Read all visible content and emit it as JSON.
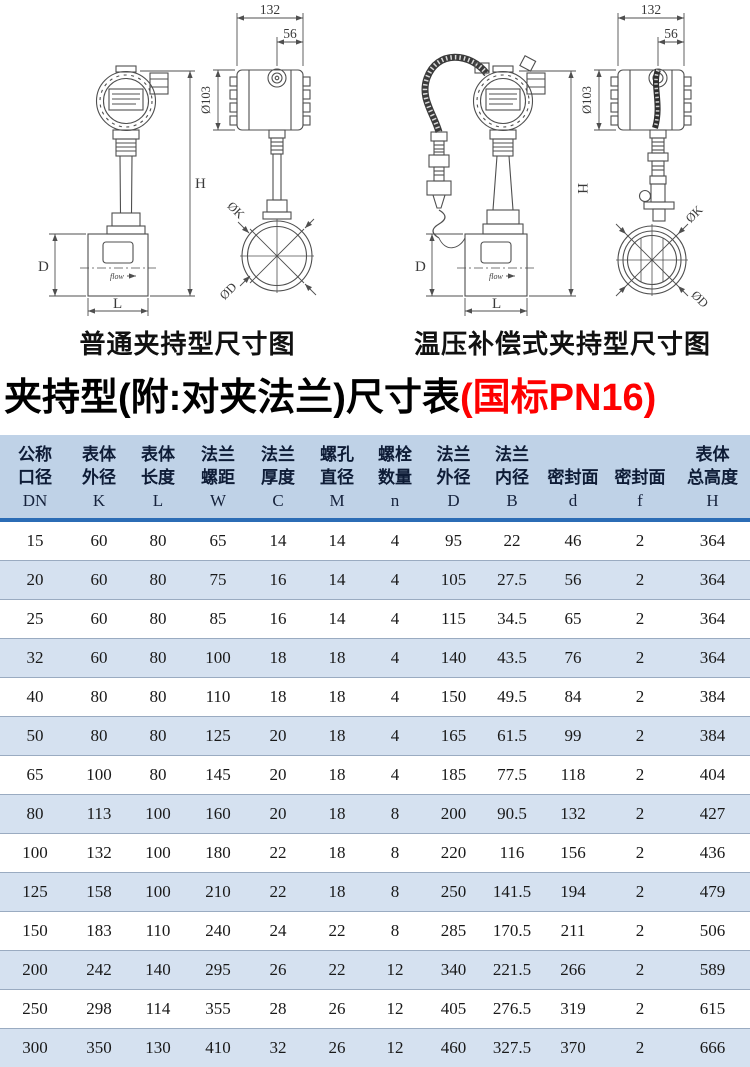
{
  "figures": {
    "left": {
      "caption": "普通夹持型尺寸图",
      "flow_label": "flow",
      "dims": {
        "housing_width": "132",
        "gland_offset": "56",
        "housing_dia": "Ø103",
        "total_height": "H",
        "body_height": "D",
        "body_length": "L",
        "bolt_circle_dia": "ØK",
        "flange_dia": "ØD"
      }
    },
    "right": {
      "caption": "温压补偿式夹持型尺寸图",
      "flow_label": "flow",
      "dims": {
        "housing_width": "132",
        "gland_offset": "56",
        "housing_dia": "Ø103",
        "total_height": "H",
        "body_height": "D",
        "body_length": "L",
        "bolt_circle_dia": "ØK",
        "flange_dia": "ØD"
      }
    }
  },
  "title": {
    "main": "夹持型(附:对夹法兰)尺寸表",
    "highlight": "(国标PN16)",
    "highlight_color": "#fe0000"
  },
  "table": {
    "headers": [
      {
        "cn": [
          "公称",
          "口径"
        ],
        "sym": "DN"
      },
      {
        "cn": [
          "表体",
          "外径"
        ],
        "sym": "K"
      },
      {
        "cn": [
          "表体",
          "长度"
        ],
        "sym": "L"
      },
      {
        "cn": [
          "法兰",
          "螺距"
        ],
        "sym": "W"
      },
      {
        "cn": [
          "法兰",
          "厚度"
        ],
        "sym": "C"
      },
      {
        "cn": [
          "螺孔",
          "直径"
        ],
        "sym": "M"
      },
      {
        "cn": [
          "螺栓",
          "数量"
        ],
        "sym": "n"
      },
      {
        "cn": [
          "法兰",
          "外径"
        ],
        "sym": "D"
      },
      {
        "cn": [
          "法兰",
          "内径"
        ],
        "sym": "B"
      },
      {
        "cn": [
          "密封面"
        ],
        "sym": "d"
      },
      {
        "cn": [
          "密封面"
        ],
        "sym": "f"
      },
      {
        "cn": [
          "表体",
          "总高度"
        ],
        "sym": "H"
      }
    ],
    "rows": [
      [
        "15",
        "60",
        "80",
        "65",
        "14",
        "14",
        "4",
        "95",
        "22",
        "46",
        "2",
        "364"
      ],
      [
        "20",
        "60",
        "80",
        "75",
        "16",
        "14",
        "4",
        "105",
        "27.5",
        "56",
        "2",
        "364"
      ],
      [
        "25",
        "60",
        "80",
        "85",
        "16",
        "14",
        "4",
        "115",
        "34.5",
        "65",
        "2",
        "364"
      ],
      [
        "32",
        "60",
        "80",
        "100",
        "18",
        "18",
        "4",
        "140",
        "43.5",
        "76",
        "2",
        "364"
      ],
      [
        "40",
        "80",
        "80",
        "110",
        "18",
        "18",
        "4",
        "150",
        "49.5",
        "84",
        "2",
        "384"
      ],
      [
        "50",
        "80",
        "80",
        "125",
        "20",
        "18",
        "4",
        "165",
        "61.5",
        "99",
        "2",
        "384"
      ],
      [
        "65",
        "100",
        "80",
        "145",
        "20",
        "18",
        "4",
        "185",
        "77.5",
        "118",
        "2",
        "404"
      ],
      [
        "80",
        "113",
        "100",
        "160",
        "20",
        "18",
        "8",
        "200",
        "90.5",
        "132",
        "2",
        "427"
      ],
      [
        "100",
        "132",
        "100",
        "180",
        "22",
        "18",
        "8",
        "220",
        "116",
        "156",
        "2",
        "436"
      ],
      [
        "125",
        "158",
        "100",
        "210",
        "22",
        "18",
        "8",
        "250",
        "141.5",
        "194",
        "2",
        "479"
      ],
      [
        "150",
        "183",
        "110",
        "240",
        "24",
        "22",
        "8",
        "285",
        "170.5",
        "211",
        "2",
        "506"
      ],
      [
        "200",
        "242",
        "140",
        "295",
        "26",
        "22",
        "12",
        "340",
        "221.5",
        "266",
        "2",
        "589"
      ],
      [
        "250",
        "298",
        "114",
        "355",
        "28",
        "26",
        "12",
        "405",
        "276.5",
        "319",
        "2",
        "615"
      ],
      [
        "300",
        "350",
        "130",
        "410",
        "32",
        "26",
        "12",
        "460",
        "327.5",
        "370",
        "2",
        "666"
      ]
    ]
  }
}
